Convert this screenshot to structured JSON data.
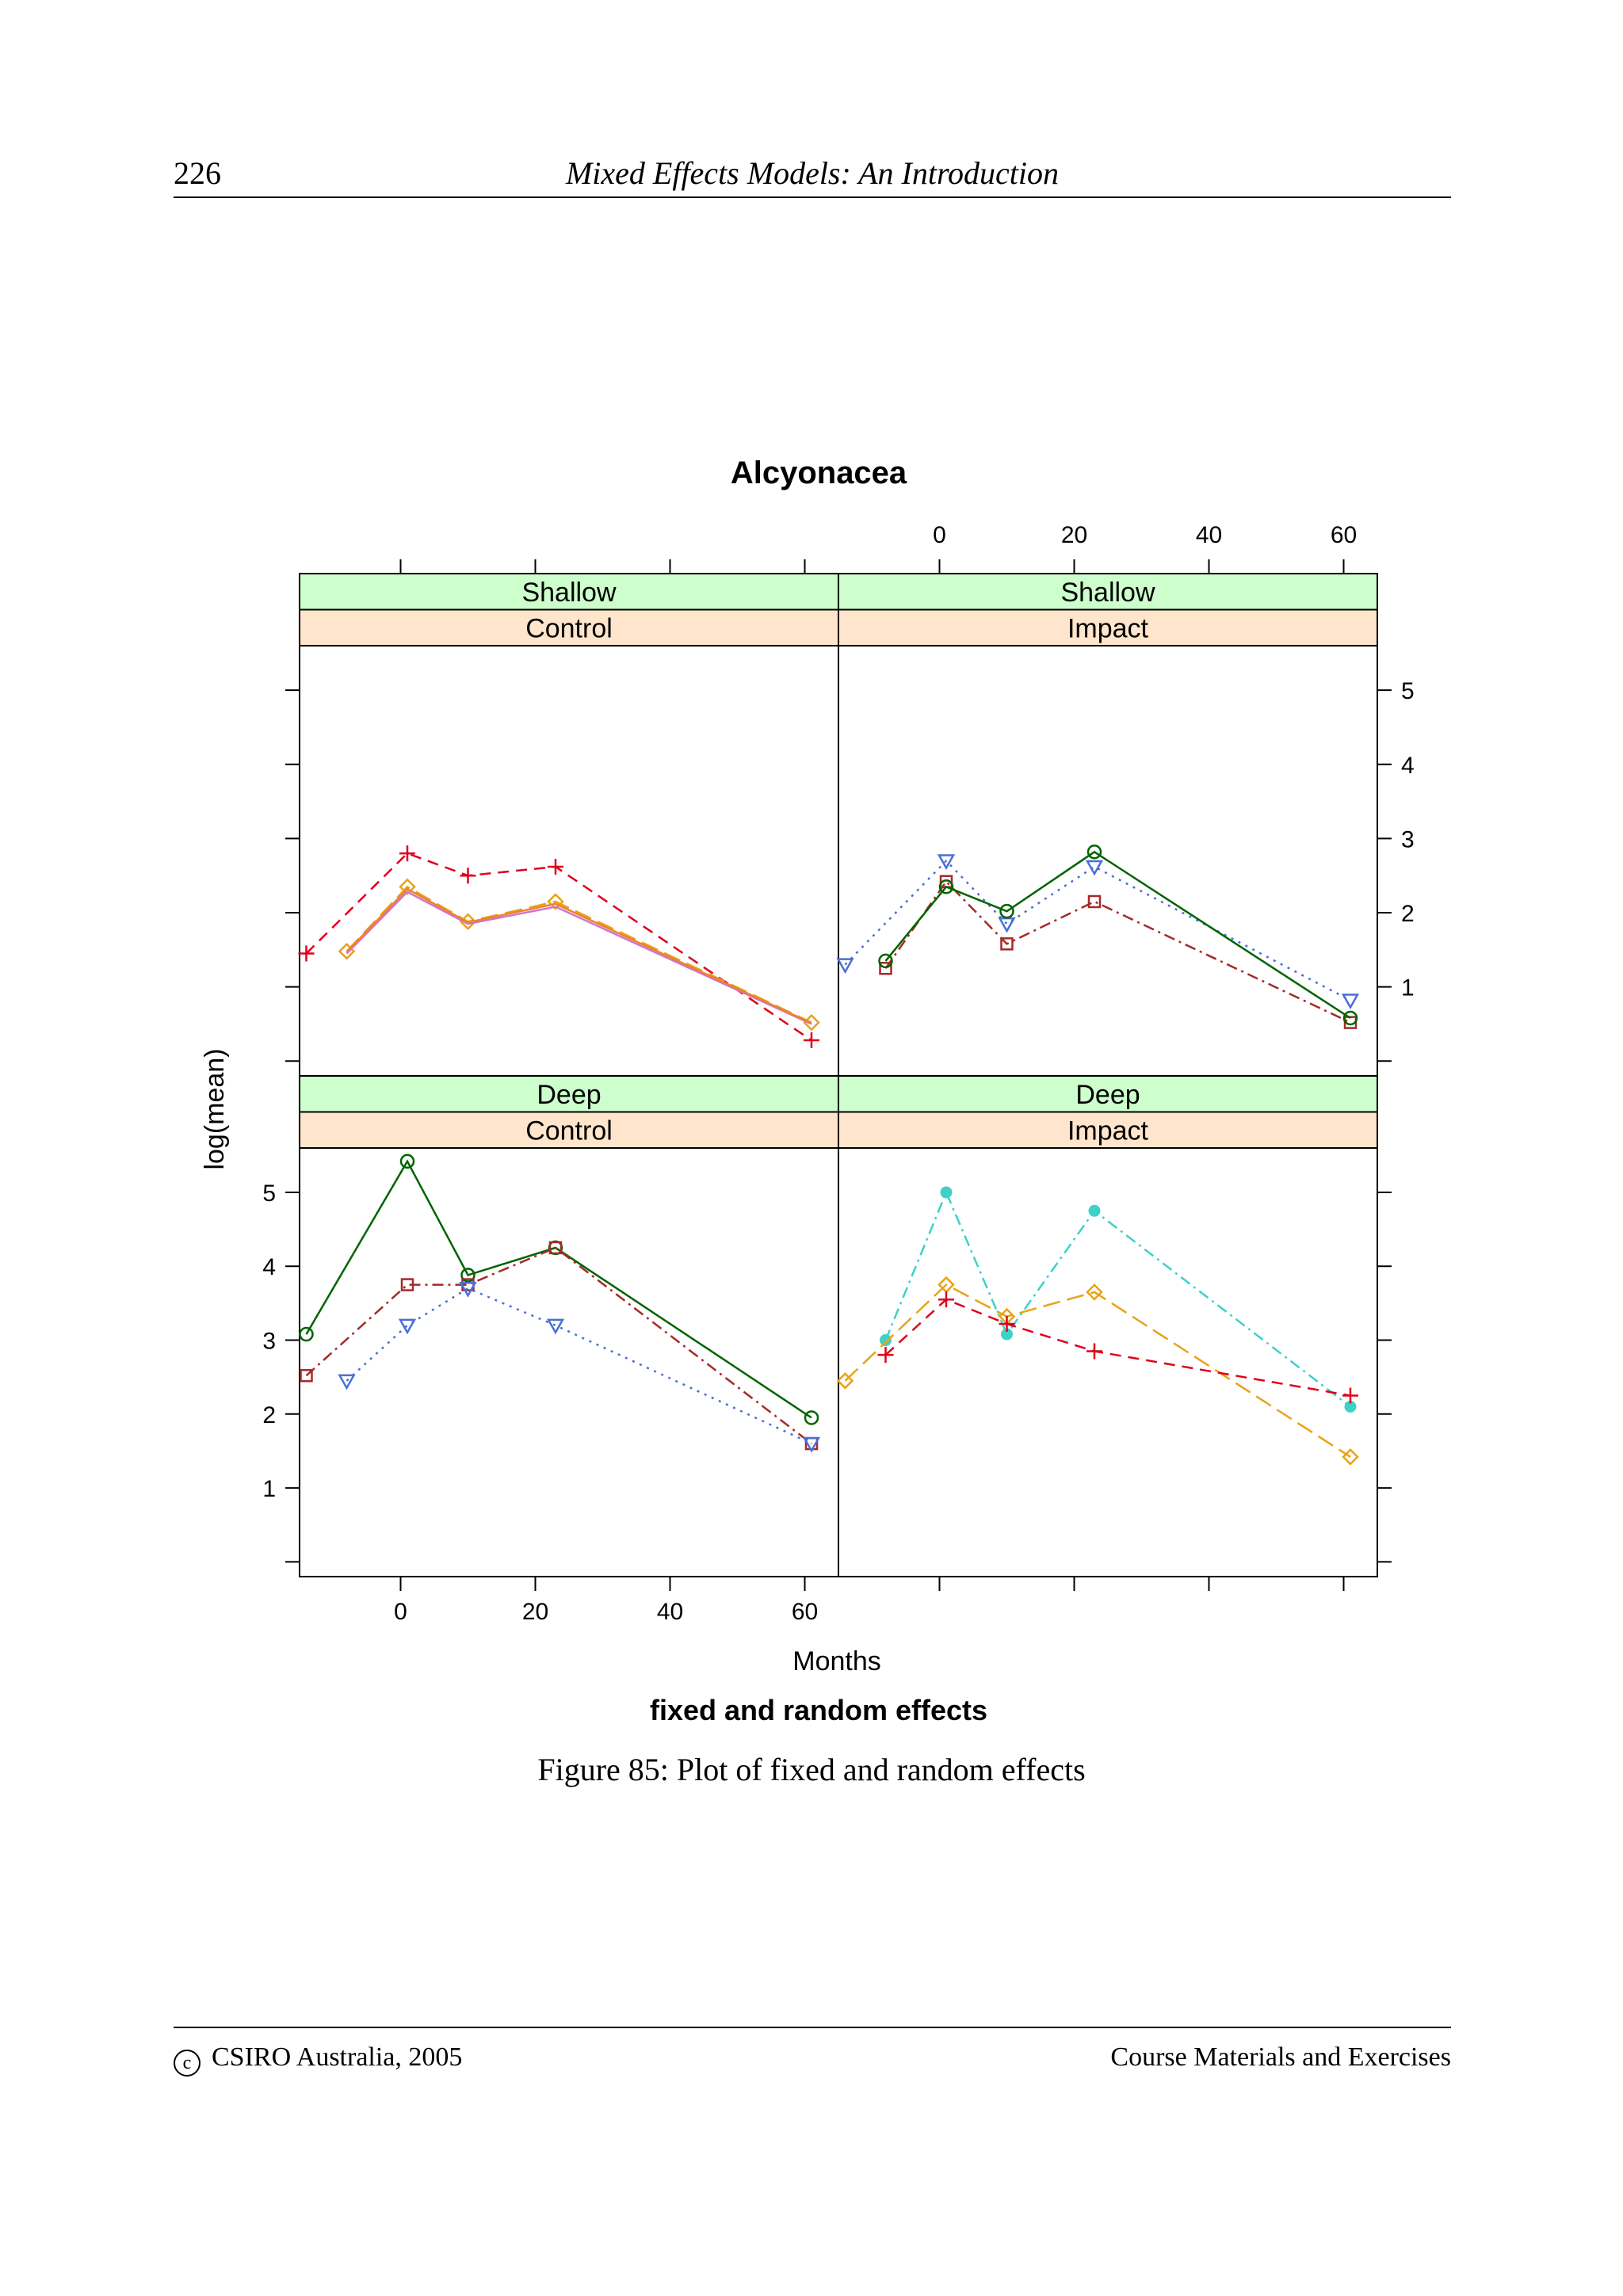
{
  "page": {
    "page_number": "226",
    "running_title": "Mixed Effects Models: An Introduction",
    "caption": "Figure 85: Plot of fixed and random effects",
    "footer_left": "CSIRO Australia, 2005",
    "footer_right": "Course Materials and Exercises"
  },
  "chart_data": {
    "type": "line",
    "title": "Alcyonacea",
    "subtitle": "fixed and random effects",
    "xlabel": "Months",
    "ylabel": "log(mean)",
    "xlim": [
      -15,
      65
    ],
    "ylim": [
      -0.2,
      5.6
    ],
    "x_ticks": [
      0,
      20,
      40,
      60
    ],
    "y_ticks": [
      1,
      2,
      3,
      4,
      5
    ],
    "colors": {
      "strip_top": "#ccffcc",
      "strip_bottom": "#ffe5cc",
      "panel_bg": "#ffffff"
    },
    "panels": [
      {
        "strip_top": "Shallow",
        "strip_bottom": "Control",
        "row": 0,
        "col": 0,
        "series": [
          {
            "color": "#e0001c",
            "dash": "14,9",
            "marker": "plus",
            "x": [
              -14,
              1,
              10,
              23,
              61
            ],
            "y": [
              1.45,
              2.8,
              2.5,
              2.62,
              0.28
            ]
          },
          {
            "color": "#e8a317",
            "dash": "22,9",
            "marker": "diamond",
            "x": [
              -8,
              1,
              10,
              23,
              61
            ],
            "y": [
              1.48,
              2.35,
              1.88,
              2.15,
              0.52
            ]
          },
          {
            "color": "#cc77cc",
            "dash": "",
            "marker": "none",
            "x": [
              -8,
              1,
              10,
              23,
              61
            ],
            "y": [
              1.45,
              2.28,
              1.85,
              2.08,
              0.5
            ]
          },
          {
            "color": "#f08030",
            "dash": "",
            "marker": "none",
            "x": [
              -8,
              1,
              10,
              23,
              61
            ],
            "y": [
              1.47,
              2.32,
              1.87,
              2.12,
              0.51
            ]
          }
        ]
      },
      {
        "strip_top": "Shallow",
        "strip_bottom": "Impact",
        "row": 0,
        "col": 1,
        "series": [
          {
            "color": "#4a6fd6",
            "dash": "3,7",
            "marker": "triangle",
            "x": [
              -14,
              1,
              10,
              23,
              61
            ],
            "y": [
              1.3,
              2.7,
              1.85,
              2.62,
              0.82
            ]
          },
          {
            "color": "#a52a2a",
            "dash": "14,6,3,6",
            "marker": "square",
            "x": [
              -8,
              1,
              10,
              23,
              61
            ],
            "y": [
              1.25,
              2.42,
              1.58,
              2.15,
              0.52
            ]
          },
          {
            "color": "#006400",
            "dash": "",
            "marker": "circle",
            "x": [
              -8,
              1,
              10,
              23,
              61
            ],
            "y": [
              1.35,
              2.35,
              2.02,
              2.82,
              0.58
            ]
          }
        ]
      },
      {
        "strip_top": "Deep",
        "strip_bottom": "Control",
        "row": 1,
        "col": 0,
        "series": [
          {
            "color": "#006400",
            "dash": "",
            "marker": "circle",
            "x": [
              -14,
              1,
              10,
              23,
              61
            ],
            "y": [
              3.08,
              5.42,
              3.88,
              4.25,
              1.95
            ]
          },
          {
            "color": "#a52a2a",
            "dash": "14,6,3,6",
            "marker": "square",
            "x": [
              -14,
              1,
              10,
              23,
              61
            ],
            "y": [
              2.52,
              3.75,
              3.75,
              4.25,
              1.6
            ]
          },
          {
            "color": "#4a6fd6",
            "dash": "3,7",
            "marker": "triangle",
            "x": [
              -8,
              1,
              10,
              23,
              61
            ],
            "y": [
              2.45,
              3.2,
              3.7,
              3.2,
              1.6
            ]
          }
        ]
      },
      {
        "strip_top": "Deep",
        "strip_bottom": "Impact",
        "row": 1,
        "col": 1,
        "series": [
          {
            "color": "#3cd2c8",
            "dash": "14,6,3,6",
            "marker": "dot",
            "x": [
              -8,
              1,
              10,
              23,
              61
            ],
            "y": [
              3.0,
              5.0,
              3.08,
              4.75,
              2.1
            ]
          },
          {
            "color": "#e8a317",
            "dash": "22,9",
            "marker": "diamond",
            "x": [
              -14,
              1,
              10,
              23,
              61
            ],
            "y": [
              2.45,
              3.75,
              3.32,
              3.65,
              1.42
            ]
          },
          {
            "color": "#e0001c",
            "dash": "14,9",
            "marker": "plus",
            "x": [
              -8,
              1,
              10,
              23,
              61
            ],
            "y": [
              2.8,
              3.55,
              3.22,
              2.85,
              2.25
            ]
          }
        ]
      }
    ]
  }
}
